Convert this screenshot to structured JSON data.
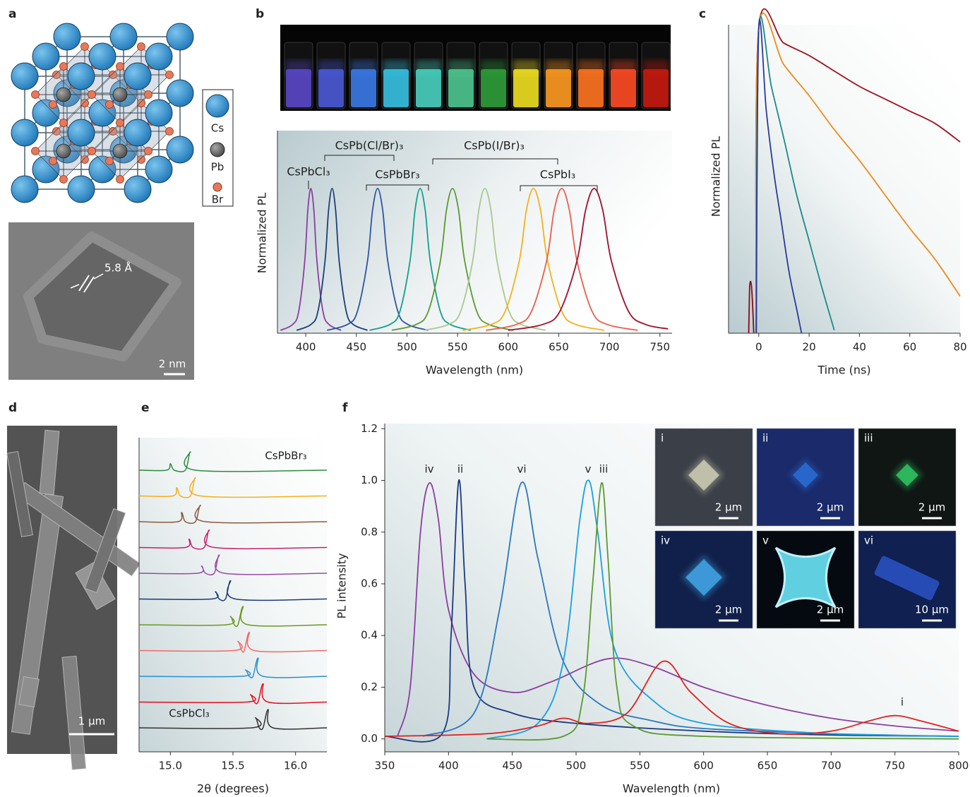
{
  "panels": {
    "labels": [
      "a",
      "b",
      "c",
      "d",
      "e",
      "f"
    ],
    "a": {
      "legend": [
        "Cs",
        "Pb",
        "Br"
      ],
      "lattice_spacing": "5.8 Å",
      "scale_bar": "2 nm"
    },
    "d": {
      "scale_bar": "1 μm"
    },
    "f_insets": [
      {
        "label": "i",
        "scale_bar": "2 μm"
      },
      {
        "label": "ii",
        "scale_bar": "2 μm"
      },
      {
        "label": "iii",
        "scale_bar": "2 μm"
      },
      {
        "label": "iv",
        "scale_bar": "2 μm"
      },
      {
        "label": "v",
        "scale_bar": "2 μm"
      },
      {
        "label": "vi",
        "scale_bar": "10 μm"
      }
    ]
  },
  "chart_data": [
    {
      "type": "line",
      "xlabel": "Wavelength (nm)",
      "ylabel": "Normalized PL",
      "xlim": [
        372,
        762
      ],
      "xticks": [
        400,
        450,
        500,
        550,
        600,
        650,
        700,
        750
      ],
      "ylim": [
        0,
        1.4
      ],
      "annotations": [
        "CsPbCl₃",
        "CsPb(Cl/Br)₃",
        "CsPbBr₃",
        "CsPb(I/Br)₃",
        "CsPbI₃"
      ],
      "series": [
        {
          "color": "#8b3fa0",
          "x": [
            375,
            387,
            393,
            399,
            402,
            405,
            408,
            411,
            417,
            423,
            435
          ],
          "values": [
            0.02,
            0.06,
            0.15,
            0.5,
            0.85,
            1,
            0.85,
            0.5,
            0.15,
            0.06,
            0.02
          ]
        },
        {
          "color": "#1c3f7a",
          "x": [
            391,
            405,
            412,
            419,
            422.5,
            426,
            429.5,
            433,
            440,
            447,
            461
          ],
          "values": [
            0.02,
            0.06,
            0.15,
            0.5,
            0.85,
            1,
            0.85,
            0.5,
            0.15,
            0.06,
            0.02
          ]
        },
        {
          "color": "#2f55a4",
          "x": [
            421,
            441,
            451,
            461,
            466,
            471,
            476,
            481,
            491,
            501,
            521
          ],
          "values": [
            0.02,
            0.06,
            0.15,
            0.5,
            0.85,
            1,
            0.85,
            0.5,
            0.15,
            0.06,
            0.02
          ]
        },
        {
          "color": "#14a08a",
          "x": [
            463,
            483,
            493,
            503,
            508,
            513,
            518,
            523,
            533,
            543,
            563
          ],
          "values": [
            0.02,
            0.06,
            0.15,
            0.5,
            0.85,
            1,
            0.85,
            0.5,
            0.15,
            0.06,
            0.02
          ]
        },
        {
          "color": "#5a9a30",
          "x": [
            485,
            509,
            521,
            533,
            539,
            545,
            551,
            557,
            569,
            581,
            605
          ],
          "values": [
            0.02,
            0.06,
            0.15,
            0.5,
            0.85,
            1,
            0.85,
            0.5,
            0.15,
            0.06,
            0.02
          ]
        },
        {
          "color": "#a8c890",
          "x": [
            517,
            541,
            553,
            565,
            571,
            577,
            583,
            589,
            601,
            613,
            637
          ],
          "values": [
            0.02,
            0.06,
            0.15,
            0.5,
            0.85,
            1,
            0.85,
            0.5,
            0.15,
            0.06,
            0.02
          ]
        },
        {
          "color": "#f2b21a",
          "x": [
            555,
            583,
            597,
            611,
            618,
            625,
            632,
            639,
            653,
            667,
            695
          ],
          "values": [
            0.02,
            0.06,
            0.15,
            0.5,
            0.85,
            1,
            0.85,
            0.5,
            0.15,
            0.06,
            0.02
          ]
        },
        {
          "color": "#e8604a",
          "x": [
            578,
            608,
            623,
            638,
            645.5,
            653,
            660.5,
            668,
            683,
            698,
            728
          ],
          "values": [
            0.02,
            0.06,
            0.15,
            0.5,
            0.85,
            1,
            0.85,
            0.5,
            0.15,
            0.06,
            0.02
          ]
        },
        {
          "color": "#a0102a",
          "x": [
            600,
            634,
            651,
            668,
            676.5,
            685,
            693.5,
            702,
            719,
            736,
            758
          ],
          "values": [
            0.02,
            0.06,
            0.15,
            0.5,
            0.85,
            1,
            0.85,
            0.5,
            0.15,
            0.06,
            0.03
          ]
        }
      ]
    },
    {
      "type": "line",
      "xlabel": "Time (ns)",
      "ylabel": "Normalized PL",
      "xlim": [
        -12,
        80
      ],
      "xticks": [
        0,
        20,
        40,
        60,
        80
      ],
      "ylim": [
        0,
        1
      ],
      "series": [
        {
          "color": "#8b0a1a",
          "x": [
            -4,
            -3.6,
            -3,
            -2.5,
            -2
          ],
          "values": [
            0,
            0.15,
            0.16,
            0.1,
            0
          ]
        },
        {
          "color": "#a01020",
          "x": [
            -1,
            0,
            10,
            20,
            30,
            40,
            50,
            60,
            70,
            80
          ],
          "values": [
            0,
            0.99,
            0.94,
            0.9,
            0.85,
            0.8,
            0.76,
            0.72,
            0.68,
            0.62
          ]
        },
        {
          "color": "#f08a1a",
          "x": [
            -1,
            0,
            10,
            20,
            30,
            40,
            50,
            60,
            70,
            80
          ],
          "values": [
            0,
            0.99,
            0.87,
            0.77,
            0.66,
            0.56,
            0.45,
            0.34,
            0.24,
            0.12
          ]
        },
        {
          "color": "#1a8a8a",
          "x": [
            -1,
            0,
            5,
            10,
            15,
            20,
            25,
            30
          ],
          "values": [
            0,
            0.99,
            0.8,
            0.63,
            0.45,
            0.3,
            0.15,
            0.01
          ]
        },
        {
          "color": "#2a3a9a",
          "x": [
            -1,
            0,
            3,
            6,
            9,
            12,
            15,
            17
          ],
          "values": [
            0,
            0.99,
            0.72,
            0.52,
            0.36,
            0.2,
            0.08,
            0
          ]
        }
      ]
    },
    {
      "type": "waterfall",
      "xlabel": "2θ (degrees)",
      "xlim": [
        14.75,
        16.25
      ],
      "xticks": [
        {
          "value": 15,
          "label": "15.0"
        },
        15.5,
        {
          "value": 16,
          "label": "16.0"
        }
      ],
      "series": [
        {
          "name": "CsPbBr₃",
          "color": "#2e8b3e",
          "x": [
            14.75,
            14.97,
            15.0,
            15.03,
            15.12,
            15.16,
            15.2,
            16.25
          ],
          "values": [
            0,
            0,
            0.35,
            0,
            0,
            1,
            0,
            0
          ]
        },
        {
          "color": "#f2b01e",
          "x": [
            14.75,
            15.02,
            15.05,
            15.08,
            15.16,
            15.2,
            15.24,
            16.25
          ],
          "values": [
            0,
            0,
            0.45,
            0,
            0,
            1,
            0,
            0
          ]
        },
        {
          "color": "#8b5a3c",
          "x": [
            14.75,
            15.06,
            15.09,
            15.12,
            15.2,
            15.24,
            15.28,
            16.25
          ],
          "values": [
            0,
            0,
            0.5,
            0,
            0,
            0.9,
            0,
            0
          ]
        },
        {
          "color": "#c8206a",
          "x": [
            14.75,
            15.12,
            15.15,
            15.18,
            15.27,
            15.31,
            15.35,
            16.25
          ],
          "values": [
            0,
            0,
            0.45,
            0,
            0,
            0.95,
            0,
            0
          ]
        },
        {
          "color": "#9a4aa8",
          "x": [
            14.75,
            15.22,
            15.25,
            15.28,
            15.35,
            15.39,
            15.43,
            16.25
          ],
          "values": [
            0,
            0,
            0.4,
            0,
            0,
            1,
            0,
            0
          ]
        },
        {
          "color": "#1a3a7a",
          "x": [
            14.75,
            15.33,
            15.36,
            15.39,
            15.44,
            15.48,
            15.52,
            16.25
          ],
          "values": [
            0,
            0,
            0.4,
            0,
            0,
            1,
            0,
            0
          ]
        },
        {
          "color": "#6a9a20",
          "x": [
            14.75,
            15.45,
            15.48,
            15.51,
            15.54,
            15.58,
            15.62,
            16.25
          ],
          "values": [
            0,
            0,
            0.45,
            0,
            0,
            1,
            0,
            0
          ]
        },
        {
          "color": "#f06a6a",
          "x": [
            14.75,
            15.51,
            15.54,
            15.57,
            15.59,
            15.63,
            15.67,
            16.25
          ],
          "values": [
            0,
            0,
            0.5,
            0,
            0,
            1,
            0,
            0
          ]
        },
        {
          "color": "#2a90d0",
          "x": [
            14.75,
            15.57,
            15.6,
            15.63,
            15.66,
            15.7,
            15.74,
            16.25
          ],
          "values": [
            0,
            0,
            0.35,
            0,
            0,
            1,
            0,
            0
          ]
        },
        {
          "color": "#e01020",
          "x": [
            14.75,
            15.61,
            15.64,
            15.67,
            15.7,
            15.74,
            15.78,
            16.25
          ],
          "values": [
            0,
            0,
            0.4,
            0,
            0,
            1,
            0,
            0
          ]
        },
        {
          "name": "CsPbCl₃",
          "color": "#333333",
          "x": [
            14.75,
            15.65,
            15.68,
            15.71,
            15.74,
            15.78,
            15.82,
            16.25
          ],
          "values": [
            0,
            0,
            0.55,
            0,
            0,
            1,
            0,
            0
          ]
        }
      ]
    },
    {
      "type": "line",
      "xlabel": "Wavelength (nm)",
      "ylabel": "PL intensity",
      "xlim": [
        350,
        800
      ],
      "xticks": [
        350,
        400,
        450,
        500,
        550,
        600,
        650,
        700,
        750,
        800
      ],
      "ylim": [
        -0.05,
        1.22
      ],
      "yticks": [
        {
          "value": 0,
          "label": "0.0"
        },
        0.2,
        0.4,
        0.6,
        0.8,
        {
          "value": 1,
          "label": "1.0"
        },
        1.2
      ],
      "series": [
        {
          "name": "iv",
          "color": "#8b3fa0",
          "x": [
            360,
            370,
            378,
            385,
            392,
            400,
            420,
            450,
            480,
            525,
            560,
            600,
            650,
            700,
            750,
            800
          ],
          "values": [
            0.01,
            0.2,
            0.8,
            0.99,
            0.85,
            0.5,
            0.25,
            0.18,
            0.22,
            0.31,
            0.28,
            0.2,
            0.13,
            0.08,
            0.05,
            0.03
          ]
        },
        {
          "name": "ii",
          "color": "#1a3a80",
          "x": [
            350,
            395,
            402,
            408,
            413,
            420,
            450,
            500,
            600,
            700,
            800
          ],
          "values": [
            0.01,
            0.02,
            0.4,
            1.0,
            0.6,
            0.2,
            0.1,
            0.06,
            0.03,
            0.015,
            0.01
          ]
        },
        {
          "name": "vi",
          "color": "#2a78c0",
          "x": [
            380,
            420,
            440,
            457,
            470,
            490,
            520,
            560,
            600,
            700,
            800
          ],
          "values": [
            0.01,
            0.1,
            0.5,
            0.99,
            0.7,
            0.3,
            0.13,
            0.07,
            0.04,
            0.02,
            0.01
          ]
        },
        {
          "name": "v",
          "color": "#1aa0e0",
          "x": [
            430,
            470,
            490,
            503,
            510,
            517,
            530,
            560,
            600,
            700,
            800
          ],
          "values": [
            0,
            0.06,
            0.3,
            0.85,
            1.0,
            0.8,
            0.35,
            0.15,
            0.06,
            0.02,
            0.01
          ]
        },
        {
          "name": "iii",
          "color": "#5a9a30",
          "x": [
            430,
            490,
            505,
            513,
            520,
            525,
            532,
            545,
            600,
            800
          ],
          "values": [
            0,
            0.01,
            0.15,
            0.6,
            0.99,
            0.7,
            0.2,
            0.05,
            0.01,
            0
          ]
        },
        {
          "name": "i",
          "color": "#e02020",
          "x": [
            350,
            430,
            470,
            490,
            510,
            540,
            568,
            590,
            620,
            660,
            700,
            730,
            750,
            770,
            800
          ],
          "values": [
            0.01,
            0.02,
            0.05,
            0.08,
            0.06,
            0.1,
            0.3,
            0.18,
            0.06,
            0.02,
            0.03,
            0.07,
            0.09,
            0.07,
            0.03
          ]
        }
      ]
    }
  ]
}
